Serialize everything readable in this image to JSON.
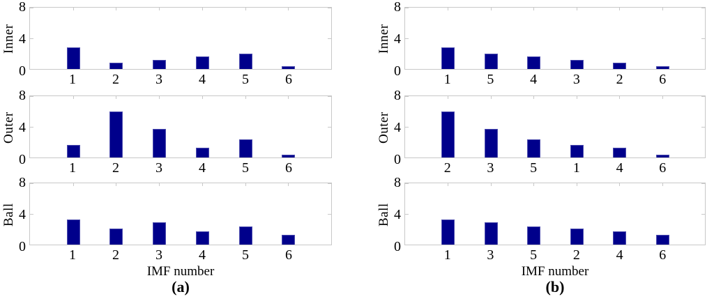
{
  "colors": {
    "bar": "#00008b",
    "bar_edge": "#5050b0",
    "axis": "#c8c8c8",
    "text": "#000000",
    "background": "#ffffff"
  },
  "panels": [
    {
      "id": "a",
      "caption": "(a)"
    },
    {
      "id": "b",
      "caption": "(b)"
    }
  ],
  "chart_data": [
    {
      "type": "bar",
      "panel": "a",
      "ylabel": "Inner",
      "xlabel": "",
      "categories": [
        "1",
        "2",
        "3",
        "4",
        "5",
        "6"
      ],
      "values": [
        2.8,
        0.8,
        1.2,
        1.6,
        2.0,
        0.4
      ],
      "ylim": [
        0,
        8
      ],
      "yticks": [
        0,
        4,
        8
      ],
      "grid": false,
      "legend_position": "none"
    },
    {
      "type": "bar",
      "panel": "a",
      "ylabel": "Outer",
      "xlabel": "",
      "categories": [
        "1",
        "2",
        "3",
        "4",
        "5",
        "6"
      ],
      "values": [
        1.6,
        6.0,
        3.7,
        1.3,
        2.4,
        0.4
      ],
      "ylim": [
        0,
        8
      ],
      "yticks": [
        0,
        4,
        8
      ],
      "grid": false,
      "legend_position": "none"
    },
    {
      "type": "bar",
      "panel": "a",
      "ylabel": "Ball",
      "xlabel": "IMF number",
      "categories": [
        "1",
        "2",
        "3",
        "4",
        "5",
        "6"
      ],
      "values": [
        3.3,
        2.1,
        2.9,
        1.7,
        2.4,
        1.3
      ],
      "ylim": [
        0,
        8
      ],
      "yticks": [
        0,
        4,
        8
      ],
      "grid": false,
      "legend_position": "none"
    },
    {
      "type": "bar",
      "panel": "b",
      "ylabel": "Inner",
      "xlabel": "",
      "categories": [
        "1",
        "5",
        "4",
        "3",
        "2",
        "6"
      ],
      "values": [
        2.8,
        2.0,
        1.6,
        1.2,
        0.8,
        0.4
      ],
      "ylim": [
        0,
        8
      ],
      "yticks": [
        0,
        4,
        8
      ],
      "grid": false,
      "legend_position": "none"
    },
    {
      "type": "bar",
      "panel": "b",
      "ylabel": "Outer",
      "xlabel": "",
      "categories": [
        "2",
        "3",
        "5",
        "1",
        "4",
        "6"
      ],
      "values": [
        6.0,
        3.7,
        2.4,
        1.6,
        1.3,
        0.4
      ],
      "ylim": [
        0,
        8
      ],
      "yticks": [
        0,
        4,
        8
      ],
      "grid": false,
      "legend_position": "none"
    },
    {
      "type": "bar",
      "panel": "b",
      "ylabel": "Ball",
      "xlabel": "IMF number",
      "categories": [
        "1",
        "3",
        "5",
        "2",
        "4",
        "6"
      ],
      "values": [
        3.3,
        2.9,
        2.4,
        2.1,
        1.7,
        1.3
      ],
      "ylim": [
        0,
        8
      ],
      "yticks": [
        0,
        4,
        8
      ],
      "grid": false,
      "legend_position": "none"
    }
  ]
}
